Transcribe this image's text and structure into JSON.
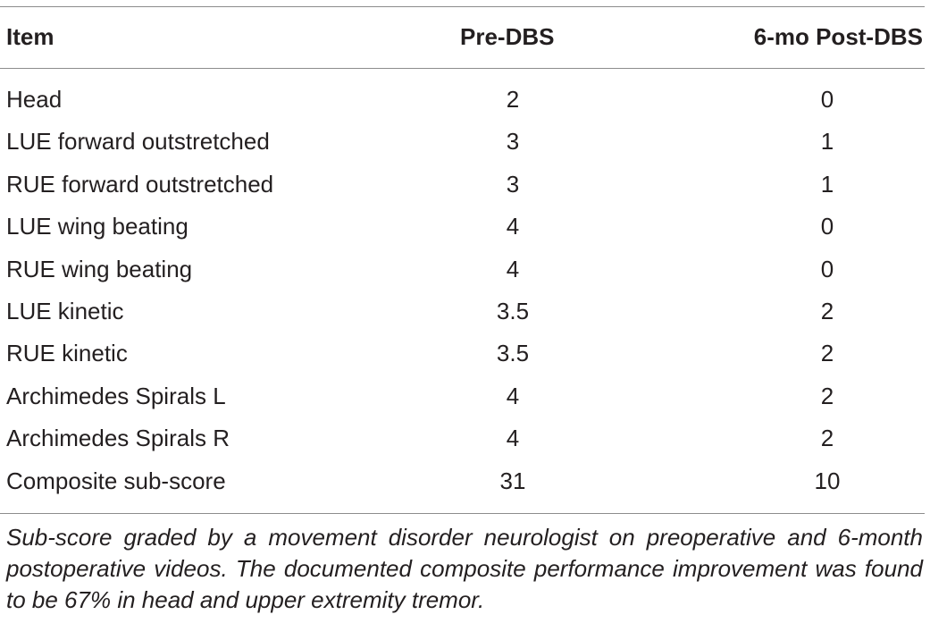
{
  "table": {
    "headers": [
      "Item",
      "Pre-DBS",
      "6-mo Post-DBS"
    ],
    "rows": [
      [
        "Head",
        "2",
        "0"
      ],
      [
        "LUE forward outstretched",
        "3",
        "1"
      ],
      [
        "RUE forward outstretched",
        "3",
        "1"
      ],
      [
        "LUE wing beating",
        "4",
        "0"
      ],
      [
        "RUE wing beating",
        "4",
        "0"
      ],
      [
        "LUE kinetic",
        "3.5",
        "2"
      ],
      [
        "RUE kinetic",
        "3.5",
        "2"
      ],
      [
        "Archimedes Spirals L",
        "4",
        "2"
      ],
      [
        "Archimedes Spirals R",
        "4",
        "2"
      ],
      [
        "Composite sub-score",
        "31",
        "10"
      ]
    ]
  },
  "footnote": "Sub-score graded by a movement disorder neurologist on preoperative and 6-month postoperative videos. The documented composite performance improvement was found to be 67% in head and upper extremity tremor."
}
